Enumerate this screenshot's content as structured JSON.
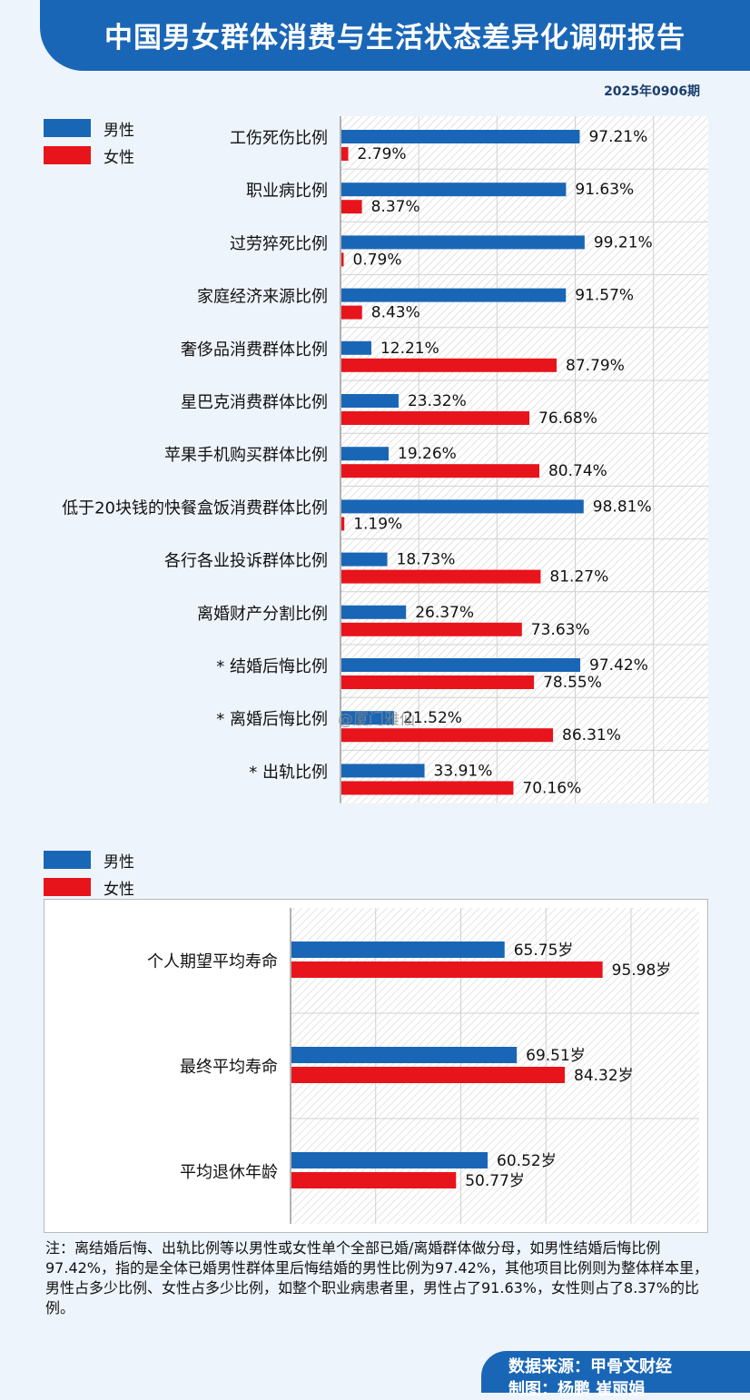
{
  "header": {
    "title": "中国男女群体消费与生活状态差异化调研报告",
    "issue": "2025年0906期"
  },
  "legend": {
    "male": "男性",
    "female": "女性"
  },
  "colors": {
    "male": "#1a66b6",
    "female": "#e8141b"
  },
  "chart_data": [
    {
      "type": "bar",
      "orientation": "horizontal",
      "unit": "%",
      "categories": [
        "工伤死伤比例",
        "职业病比例",
        "过劳猝死比例",
        "家庭经济来源比例",
        "奢侈品消费群体比例",
        "星巴克消费群体比例",
        "苹果手机购买群体比例",
        "低于20块钱的快餐盒饭消费群体比例",
        "各行各业投诉群体比例",
        "离婚财产分割比例",
        "* 结婚后悔比例",
        "* 离婚后悔比例",
        "* 出轨比例"
      ],
      "series": [
        {
          "name": "男性",
          "values": [
            97.21,
            91.63,
            99.21,
            91.57,
            12.21,
            23.32,
            19.26,
            98.81,
            18.73,
            26.37,
            97.42,
            21.52,
            33.91
          ]
        },
        {
          "name": "女性",
          "values": [
            2.79,
            8.37,
            0.79,
            8.43,
            87.79,
            76.68,
            80.74,
            1.19,
            81.27,
            73.63,
            78.55,
            86.31,
            70.16
          ]
        }
      ],
      "xlim": [
        0,
        100
      ]
    },
    {
      "type": "bar",
      "orientation": "horizontal",
      "unit": "岁",
      "categories": [
        "个人期望平均寿命",
        "最终平均寿命",
        "平均退休年龄"
      ],
      "series": [
        {
          "name": "男性",
          "values": [
            65.75,
            69.51,
            60.52
          ]
        },
        {
          "name": "女性",
          "values": [
            95.98,
            84.32,
            50.77
          ]
        }
      ],
      "xlim": [
        0,
        100
      ]
    }
  ],
  "note": "注：离结婚后悔、出轨比例等以男性或女性单个全部已婚/离婚群体做分母，如男性结婚后悔比例97.42%，指的是全体已婚男性群体里后悔结婚的男性比例为97.42%，其他项目比例则为整体样本里，男性占多少比例、女性占多少比例，如整个职业病患者里，男性占了91.63%，女性则占了8.37%的比例。",
  "footer": {
    "source": "数据来源：甲骨文财经",
    "maker": "制图：杨鹏 崔丽娟"
  },
  "watermark": "@厦门雅仙"
}
